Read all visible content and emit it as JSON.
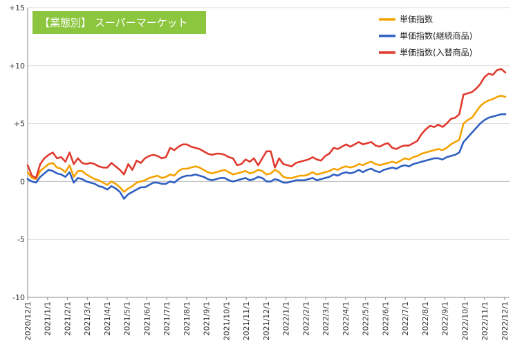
{
  "chart_data": {
    "type": "line",
    "title": "【業態別】 スーパーマーケット",
    "xlabel": "",
    "ylabel": "",
    "ylim": [
      -10,
      15
    ],
    "y_ticks": [
      "+15",
      "+10",
      "+5",
      "0",
      "-5",
      "-10"
    ],
    "y_tick_values": [
      15,
      10,
      5,
      0,
      -5,
      -10
    ],
    "x_ticks": [
      "2020/12/1",
      "2021/1/1",
      "2021/2/1",
      "2021/3/1",
      "2021/4/1",
      "2021/5/1",
      "2021/6/1",
      "2021/7/1",
      "2021/8/1",
      "2021/9/1",
      "2021/10/1",
      "2021/11/1",
      "2021/12/1",
      "2022/1/1",
      "2022/2/1",
      "2022/3/1",
      "2022/4/1",
      "2022/5/1",
      "2022/6/1",
      "2022/7/1",
      "2022/8/1",
      "2022/9/1",
      "2022/10/1",
      "2022/11/1",
      "2022/12/1"
    ],
    "grid": "horizontal",
    "legend_position": "top-right",
    "colors": {
      "badge": "#8CC63F",
      "axis": "#888888",
      "grid": "#d9d9d9"
    },
    "series": [
      {
        "name": "単価指数",
        "color": "#F5A200",
        "values": [
          0.8,
          0.3,
          0.2,
          0.9,
          1.2,
          1.5,
          1.6,
          1.2,
          1.1,
          0.8,
          1.4,
          0.4,
          0.9,
          0.9,
          0.6,
          0.4,
          0.2,
          0.1,
          -0.1,
          -0.3,
          0.0,
          -0.2,
          -0.5,
          -0.9,
          -0.6,
          -0.4,
          -0.1,
          0.0,
          0.1,
          0.3,
          0.4,
          0.5,
          0.3,
          0.4,
          0.6,
          0.5,
          0.9,
          1.1,
          1.1,
          1.2,
          1.3,
          1.2,
          1.0,
          0.8,
          0.7,
          0.8,
          0.9,
          1.0,
          0.8,
          0.6,
          0.7,
          0.8,
          0.9,
          0.7,
          0.8,
          1.0,
          0.9,
          0.6,
          0.7,
          1.0,
          0.8,
          0.4,
          0.3,
          0.3,
          0.4,
          0.5,
          0.5,
          0.6,
          0.8,
          0.6,
          0.7,
          0.8,
          0.9,
          1.1,
          1.0,
          1.2,
          1.3,
          1.2,
          1.3,
          1.5,
          1.4,
          1.6,
          1.7,
          1.5,
          1.4,
          1.5,
          1.6,
          1.7,
          1.6,
          1.8,
          2.0,
          1.9,
          2.1,
          2.2,
          2.4,
          2.5,
          2.6,
          2.7,
          2.8,
          2.7,
          2.9,
          3.2,
          3.4,
          3.6,
          5.0,
          5.3,
          5.5,
          6.0,
          6.5,
          6.8,
          7.0,
          7.1,
          7.3,
          7.4,
          7.3
        ]
      },
      {
        "name": "単価指数(継続商品)",
        "color": "#2E5FC1",
        "values": [
          0.2,
          0.0,
          -0.1,
          0.4,
          0.7,
          1.0,
          0.9,
          0.7,
          0.6,
          0.4,
          0.8,
          -0.1,
          0.3,
          0.2,
          0.0,
          -0.1,
          -0.2,
          -0.4,
          -0.5,
          -0.7,
          -0.4,
          -0.6,
          -0.9,
          -1.5,
          -1.1,
          -0.9,
          -0.7,
          -0.5,
          -0.5,
          -0.3,
          -0.1,
          -0.1,
          -0.2,
          -0.2,
          0.0,
          -0.1,
          0.2,
          0.4,
          0.5,
          0.5,
          0.6,
          0.5,
          0.4,
          0.2,
          0.1,
          0.2,
          0.3,
          0.3,
          0.1,
          0.0,
          0.1,
          0.2,
          0.3,
          0.1,
          0.2,
          0.4,
          0.3,
          0.0,
          0.0,
          0.2,
          0.1,
          -0.1,
          -0.1,
          0.0,
          0.1,
          0.1,
          0.1,
          0.2,
          0.3,
          0.1,
          0.2,
          0.3,
          0.4,
          0.6,
          0.5,
          0.7,
          0.8,
          0.7,
          0.8,
          1.0,
          0.8,
          1.0,
          1.1,
          0.9,
          0.8,
          1.0,
          1.1,
          1.2,
          1.1,
          1.3,
          1.4,
          1.3,
          1.5,
          1.6,
          1.7,
          1.8,
          1.9,
          2.0,
          2.0,
          1.9,
          2.1,
          2.2,
          2.3,
          2.5,
          3.4,
          3.8,
          4.2,
          4.6,
          5.0,
          5.3,
          5.5,
          5.6,
          5.7,
          5.8,
          5.8
        ]
      },
      {
        "name": "単価指数(入替商品)",
        "color": "#E03A2E",
        "values": [
          1.4,
          0.5,
          0.3,
          1.5,
          2.0,
          2.3,
          2.5,
          2.0,
          2.1,
          1.7,
          2.5,
          1.5,
          2.0,
          1.6,
          1.5,
          1.6,
          1.5,
          1.3,
          1.2,
          1.2,
          1.6,
          1.3,
          1.0,
          0.6,
          1.5,
          1.0,
          1.8,
          1.6,
          2.0,
          2.2,
          2.3,
          2.2,
          2.0,
          2.1,
          2.9,
          2.7,
          3.0,
          3.2,
          3.2,
          3.0,
          2.9,
          2.8,
          2.6,
          2.4,
          2.3,
          2.4,
          2.4,
          2.3,
          2.1,
          2.0,
          1.4,
          1.5,
          1.9,
          1.7,
          2.0,
          1.4,
          2.0,
          2.6,
          2.6,
          1.2,
          2.0,
          1.5,
          1.4,
          1.3,
          1.6,
          1.7,
          1.8,
          1.9,
          2.1,
          1.9,
          1.8,
          2.2,
          2.4,
          2.9,
          2.8,
          3.0,
          3.2,
          3.0,
          3.2,
          3.4,
          3.2,
          3.3,
          3.4,
          3.1,
          3.0,
          3.2,
          3.3,
          2.9,
          2.8,
          3.0,
          3.1,
          3.1,
          3.3,
          3.5,
          4.1,
          4.5,
          4.8,
          4.7,
          4.9,
          4.7,
          5.0,
          5.4,
          5.5,
          5.8,
          7.5,
          7.6,
          7.7,
          8.0,
          8.4,
          9.0,
          9.3,
          9.2,
          9.6,
          9.7,
          9.4
        ]
      }
    ]
  }
}
